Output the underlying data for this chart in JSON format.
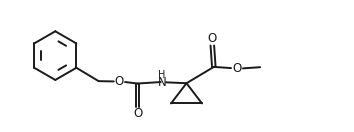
{
  "bg_color": "#ffffff",
  "line_color": "#1a1a1a",
  "line_width": 1.4,
  "font_size": 8.5,
  "figsize": [
    3.54,
    1.32
  ],
  "dpi": 100,
  "xlim": [
    0,
    10.5
  ],
  "ylim": [
    -0.2,
    4.2
  ]
}
